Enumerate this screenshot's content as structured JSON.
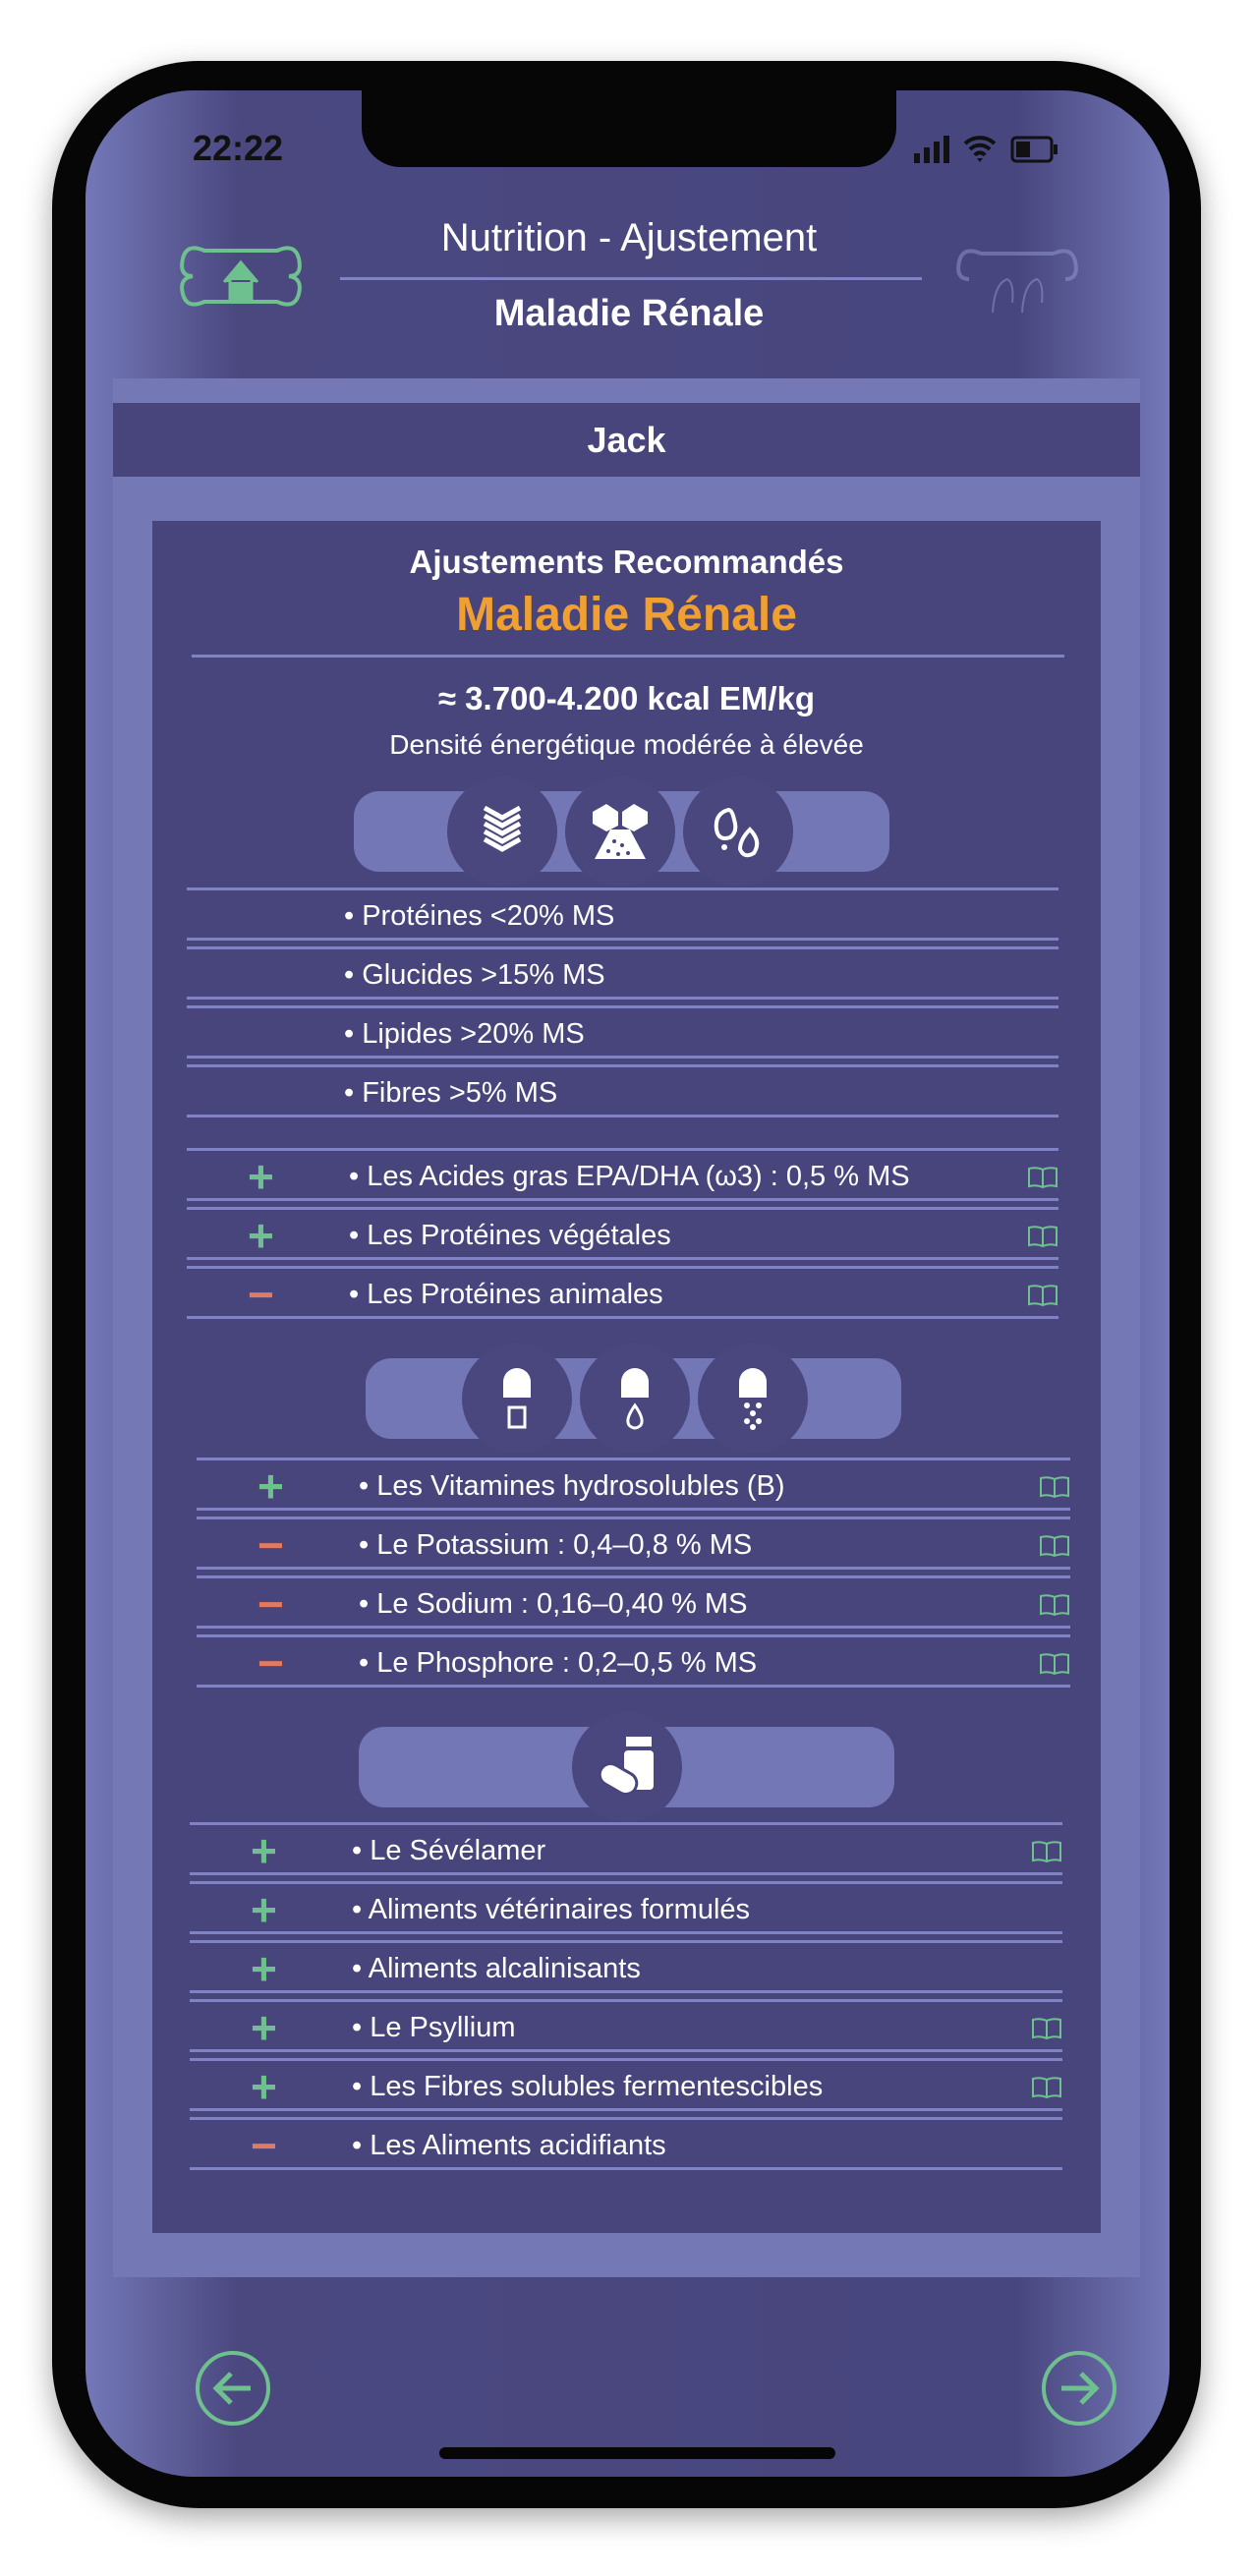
{
  "status": {
    "time": "22:22"
  },
  "header": {
    "title": "Nutrition - Ajustement",
    "subtitle": "Maladie Rénale",
    "home_icon": "bone-home-icon",
    "pets_icon": "bone-pets-icon"
  },
  "patient": {
    "name": "Jack"
  },
  "card": {
    "heading": "Ajustements Recommandés",
    "disease": "Maladie Rénale",
    "energy": "≈ 3.700-4.200 kcal EM/kg",
    "energy_desc": "Densité énergétique modérée à élevée",
    "colors": {
      "plus": "#6fc08f",
      "minus": "#e07a62",
      "accent": "#f0a030"
    },
    "macros_icons": [
      "protein-icon",
      "carbohydrate-icon",
      "lipid-icon"
    ],
    "macros": [
      "• Protéines <20% MS",
      "• Glucides >15% MS",
      "• Lipides >20% MS",
      "• Fibres >5% MS"
    ],
    "nutrients": [
      {
        "sign": "+",
        "text": "• Les Acides gras EPA/DHA (ω3) : 0,5 % MS",
        "ref": true
      },
      {
        "sign": "+",
        "text": "• Les Protéines végétales",
        "ref": true
      },
      {
        "sign": "−",
        "text": "• Les Protéines animales",
        "ref": true
      }
    ],
    "micro_icons": [
      "capsule-mineral-icon",
      "capsule-drop-icon",
      "capsule-powder-icon"
    ],
    "micros": [
      {
        "sign": "+",
        "text": "• Les Vitamines hydrosolubles (B)",
        "ref": true
      },
      {
        "sign": "−",
        "text": "• Le Potassium : 0,4–0,8 % MS",
        "ref": true
      },
      {
        "sign": "−",
        "text": "• Le Sodium : 0,16–0,40 % MS",
        "ref": true
      },
      {
        "sign": "−",
        "text": "• Le Phosphore : 0,2–0,5 % MS",
        "ref": true
      }
    ],
    "supp_icon": "pills-bottle-icon",
    "supplements": [
      {
        "sign": "+",
        "text": "• Le Sévélamer",
        "ref": true
      },
      {
        "sign": "+",
        "text": "• Aliments vétérinaires formulés",
        "ref": false
      },
      {
        "sign": "+",
        "text": "• Aliments alcalinisants",
        "ref": false
      },
      {
        "sign": "+",
        "text": "• Le Psyllium",
        "ref": true
      },
      {
        "sign": "+",
        "text": "• Les Fibres solubles fermentescibles",
        "ref": true
      },
      {
        "sign": "−",
        "text": "• Les Aliments acidifiants",
        "ref": false
      }
    ]
  },
  "nav": {
    "back_icon": "arrow-left-icon",
    "next_icon": "arrow-right-icon"
  }
}
